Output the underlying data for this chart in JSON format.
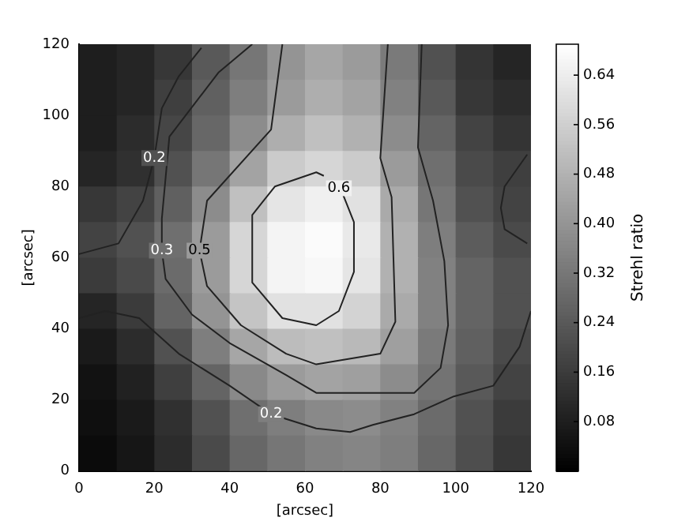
{
  "chart_data": {
    "type": "heatmap",
    "xlabel": "[arcsec]",
    "ylabel": "[arcsec]",
    "clabel": "Strehl ratio",
    "xlim": [
      0,
      120
    ],
    "xticks": [
      0,
      20,
      40,
      60,
      80,
      100,
      120
    ],
    "ylim": [
      0,
      120
    ],
    "yticks": [
      0,
      20,
      40,
      60,
      80,
      100,
      120
    ],
    "clim": [
      0,
      0.69
    ],
    "cticks": [
      0.08,
      0.16,
      0.24,
      0.32,
      {
        "value": 0.4,
        "label": "0.40"
      },
      0.48,
      0.56,
      0.64
    ],
    "cells": [
      [
        0.08,
        0.1,
        0.15,
        0.24,
        0.32,
        0.4,
        0.45,
        0.42,
        0.33,
        0.22,
        0.14,
        0.1
      ],
      [
        0.08,
        0.1,
        0.17,
        0.26,
        0.34,
        0.42,
        0.47,
        0.44,
        0.35,
        0.24,
        0.15,
        0.12
      ],
      [
        0.08,
        0.12,
        0.19,
        0.28,
        0.38,
        0.47,
        0.52,
        0.48,
        0.38,
        0.27,
        0.18,
        0.14
      ],
      [
        0.1,
        0.13,
        0.22,
        0.32,
        0.44,
        0.55,
        0.58,
        0.55,
        0.42,
        0.3,
        0.2,
        0.17
      ],
      [
        0.15,
        0.18,
        0.26,
        0.38,
        0.52,
        0.62,
        0.65,
        0.61,
        0.46,
        0.32,
        0.22,
        0.18
      ],
      [
        0.18,
        0.22,
        0.3,
        0.42,
        0.58,
        0.66,
        0.68,
        0.63,
        0.48,
        0.34,
        0.25,
        0.2
      ],
      [
        0.16,
        0.2,
        0.29,
        0.42,
        0.58,
        0.66,
        0.67,
        0.62,
        0.48,
        0.35,
        0.27,
        0.22
      ],
      [
        0.1,
        0.16,
        0.27,
        0.4,
        0.53,
        0.61,
        0.61,
        0.57,
        0.46,
        0.35,
        0.27,
        0.22
      ],
      [
        0.07,
        0.12,
        0.22,
        0.34,
        0.45,
        0.51,
        0.52,
        0.5,
        0.43,
        0.33,
        0.26,
        0.2
      ],
      [
        0.05,
        0.09,
        0.17,
        0.27,
        0.37,
        0.42,
        0.44,
        0.43,
        0.38,
        0.31,
        0.24,
        0.18
      ],
      [
        0.04,
        0.07,
        0.13,
        0.22,
        0.3,
        0.34,
        0.37,
        0.38,
        0.35,
        0.29,
        0.22,
        0.16
      ],
      [
        0.03,
        0.06,
        0.12,
        0.2,
        0.28,
        0.32,
        0.35,
        0.36,
        0.34,
        0.28,
        0.21,
        0.15
      ]
    ],
    "series": [
      {
        "type": "line",
        "color": "#222222",
        "x": [
          0,
          10.5,
          17,
          20,
          22,
          26.5,
          32.5
        ],
        "values": [
          61,
          64,
          76,
          88,
          102,
          111,
          119
        ]
      },
      {
        "type": "line",
        "color": "#222222",
        "x": [
          46,
          37,
          24,
          22,
          22,
          23,
          30,
          40,
          55,
          63,
          89,
          96,
          98,
          97,
          94,
          90,
          91
        ],
        "values": [
          120,
          112,
          94,
          71,
          62,
          54,
          44,
          36,
          27,
          22,
          22,
          29,
          41,
          59,
          76,
          91,
          120
        ]
      },
      {
        "type": "line",
        "color": "#222222",
        "x": [
          54,
          51,
          34,
          32,
          34,
          43,
          55,
          63,
          80,
          84,
          83,
          80,
          82
        ],
        "values": [
          120,
          96,
          76,
          62,
          52,
          41,
          33,
          30,
          33,
          42,
          77,
          88,
          120
        ]
      },
      {
        "type": "line",
        "color": "#222222",
        "x": [
          65,
          63,
          52,
          46,
          46,
          54,
          63,
          69,
          73,
          73,
          70,
          69
        ],
        "values": [
          83,
          84,
          80,
          72,
          53,
          43,
          41,
          45,
          56,
          70,
          78,
          79.5
        ]
      },
      {
        "type": "line",
        "color": "#222222",
        "x": [
          0,
          7,
          16,
          26.5,
          40,
          51,
          63,
          72,
          78,
          89,
          99.5,
          110,
          117,
          120
        ],
        "values": [
          43,
          45,
          43,
          33,
          24,
          16,
          12,
          11,
          13,
          16,
          21,
          24,
          35,
          45
        ]
      },
      {
        "type": "line",
        "color": "#222222",
        "x": [
          119,
          113,
          112,
          113,
          119
        ],
        "values": [
          89,
          80,
          74,
          68,
          64
        ]
      }
    ],
    "annotations": [
      {
        "text": "0.2",
        "x": 20,
        "y": 88
      },
      {
        "text": "0.3",
        "x": 22,
        "y": 62
      },
      {
        "text": "0.5",
        "x": 32,
        "y": 62
      },
      {
        "text": "0.6",
        "x": 69,
        "y": 79.5
      },
      {
        "text": "0.2",
        "x": 51,
        "y": 16
      }
    ]
  }
}
